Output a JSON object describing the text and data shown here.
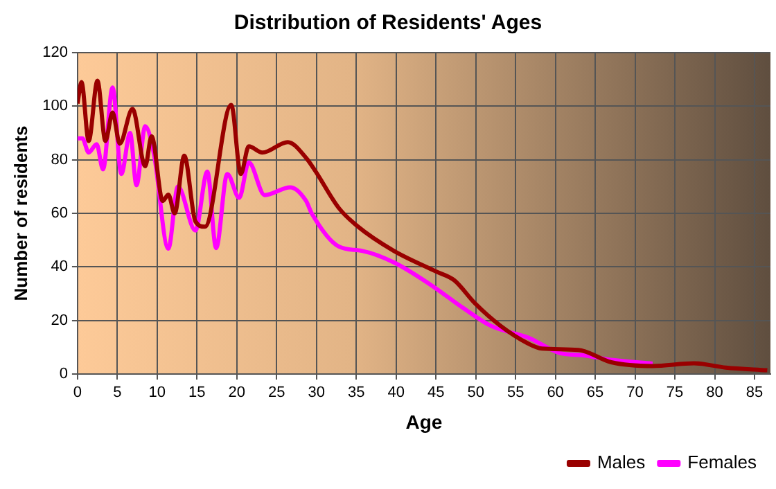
{
  "chart_data": {
    "type": "line",
    "title": "Distribution of Residents' Ages",
    "xlabel": "Age",
    "ylabel": "Number of residents",
    "xlim": [
      0,
      87
    ],
    "xticks": [
      0,
      5,
      10,
      15,
      20,
      25,
      30,
      35,
      40,
      45,
      50,
      55,
      60,
      65,
      70,
      75,
      80,
      85
    ],
    "ylim": [
      0,
      120
    ],
    "yticks": [
      0,
      20,
      40,
      60,
      80,
      100,
      120
    ],
    "grid": true,
    "legend": "bottom right",
    "marker": "none",
    "line_style": "solid",
    "series": [
      {
        "name": "Males",
        "color": "#990000",
        "x": [
          0,
          0.5,
          1.4,
          2.5,
          3.5,
          4.4,
          5.3,
          6.9,
          8.5,
          9.3,
          10.7,
          11.4,
          12.2,
          13.4,
          14.8,
          16,
          19.3,
          20.5,
          21.5,
          23.2,
          26.4,
          28.7,
          29.9,
          32.8,
          35.1,
          39.7,
          45,
          47.3,
          49.9,
          53.1,
          56.5,
          58.3,
          62.9,
          67,
          72.2,
          77.4,
          81.4,
          86.6
        ],
        "values": [
          101,
          109,
          87,
          109.5,
          87,
          97.6,
          86,
          99,
          77.6,
          88.8,
          64.6,
          67,
          60,
          81.5,
          57,
          55,
          100.5,
          74.7,
          85,
          82.7,
          86.6,
          80.7,
          75.6,
          62,
          55.3,
          46,
          38.3,
          35,
          26.4,
          18,
          11.5,
          9.5,
          9,
          4.4,
          3,
          4,
          2.4,
          1.4
        ]
      },
      {
        "name": "Females",
        "color": "#ff00ff",
        "x": [
          0,
          0.6,
          1.4,
          2.4,
          3.2,
          4.4,
          5.5,
          6.6,
          7.4,
          8.5,
          9.6,
          11.4,
          12.6,
          14.8,
          16.3,
          17.4,
          18.8,
          20.3,
          21.5,
          23.5,
          26.7,
          28.7,
          29.4,
          32.8,
          35.7,
          39.7,
          44.4,
          48.4,
          51.9,
          56.5,
          57.1,
          60.6,
          63.5,
          67,
          72.2
        ],
        "values": [
          88,
          88,
          82.7,
          85.8,
          76.4,
          107,
          74.7,
          90,
          70.5,
          92.5,
          82,
          46.8,
          70,
          53.6,
          75.6,
          47,
          74.7,
          65.8,
          79,
          66.8,
          69.7,
          64.6,
          60,
          47.6,
          46,
          41.7,
          33.2,
          24.7,
          18,
          13.7,
          12.9,
          7.8,
          7,
          5.3,
          3.9
        ]
      }
    ]
  }
}
